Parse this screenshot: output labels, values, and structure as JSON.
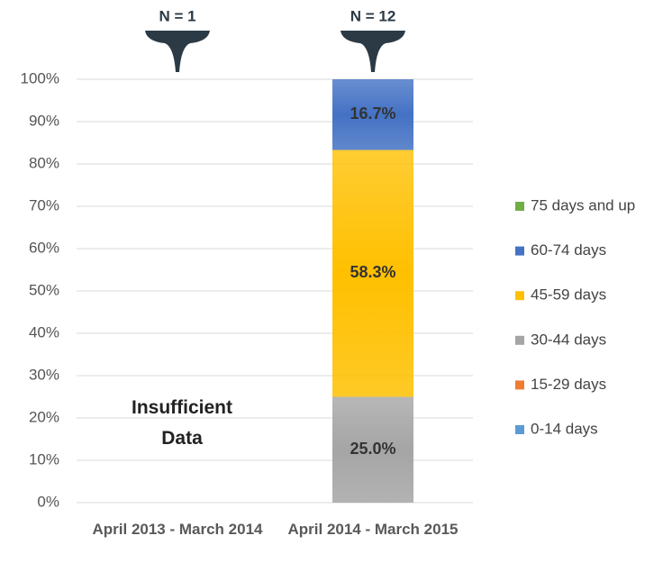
{
  "chart_data": {
    "type": "stacked_bar",
    "categories": [
      "April 2013 - March 2014",
      "April 2014 - March 2015"
    ],
    "series": [
      {
        "name": "0-14 days",
        "color": "#5b9bd5",
        "values": [
          null,
          0
        ]
      },
      {
        "name": "15-29 days",
        "color": "#ed7d31",
        "values": [
          null,
          0
        ]
      },
      {
        "name": "30-44 days",
        "color": "#a5a5a5",
        "values": [
          null,
          25.0
        ],
        "value_labels": [
          null,
          "25.0%"
        ]
      },
      {
        "name": "45-59 days",
        "color": "#ffc000",
        "values": [
          null,
          58.3
        ],
        "value_labels": [
          null,
          "58.3%"
        ]
      },
      {
        "name": "60-74 days",
        "color": "#4472c4",
        "values": [
          null,
          16.7
        ],
        "value_labels": [
          null,
          "16.7%"
        ]
      },
      {
        "name": "75 days and up",
        "color": "#70ad47",
        "values": [
          null,
          0
        ]
      }
    ],
    "n_labels": [
      "N = 1",
      "N = 12"
    ],
    "annotation": "Insufficient Data",
    "ylim": [
      0,
      100
    ],
    "yticks": [
      {
        "value": 0,
        "label": "0%"
      },
      {
        "value": 10,
        "label": "10%"
      },
      {
        "value": 20,
        "label": "20%"
      },
      {
        "value": 30,
        "label": "30%"
      },
      {
        "value": 40,
        "label": "40%"
      },
      {
        "value": 50,
        "label": "50%"
      },
      {
        "value": 60,
        "label": "60%"
      },
      {
        "value": 70,
        "label": "70%"
      },
      {
        "value": 80,
        "label": "80%"
      },
      {
        "value": 90,
        "label": "90%"
      },
      {
        "value": 100,
        "label": "100%"
      }
    ],
    "grid": true,
    "legend": "right"
  }
}
